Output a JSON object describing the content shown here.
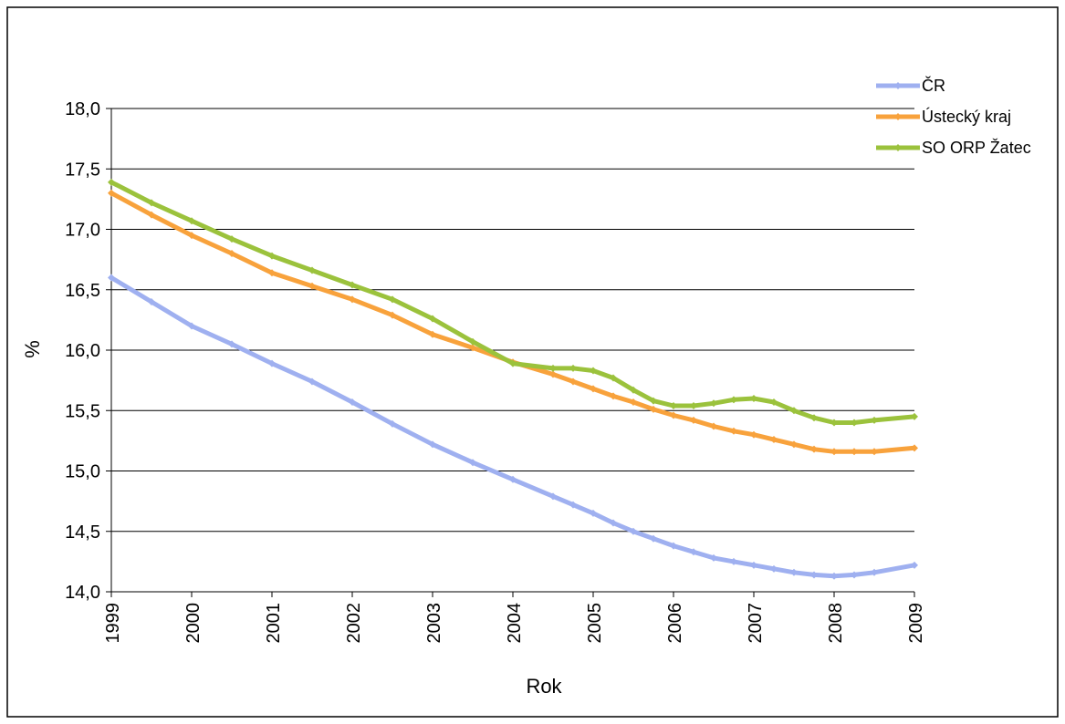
{
  "chart_data": {
    "type": "line",
    "title": "",
    "xlabel": "Rok",
    "ylabel": "%",
    "ylim": [
      14.0,
      18.0
    ],
    "yticks": [
      "14,0",
      "14,5",
      "15,0",
      "15,5",
      "16,0",
      "16,5",
      "17,0",
      "17,5",
      "18,0"
    ],
    "ytick_values": [
      14.0,
      14.5,
      15.0,
      15.5,
      16.0,
      16.5,
      17.0,
      17.5,
      18.0
    ],
    "categories": [
      "1999",
      "2000",
      "2001",
      "2002",
      "2003",
      "2004",
      "2005",
      "2006",
      "2007",
      "2008",
      "2009"
    ],
    "grid": true,
    "legend_position": "top-right",
    "x": [
      1999,
      1999.5,
      2000,
      2000.5,
      2001,
      2001.5,
      2002,
      2002.5,
      2003,
      2003.5,
      2004,
      2004.5,
      2004.75,
      2005,
      2005.25,
      2005.5,
      2005.75,
      2006,
      2006.25,
      2006.5,
      2006.75,
      2007,
      2007.25,
      2007.5,
      2007.75,
      2008,
      2008.25,
      2008.5,
      2009
    ],
    "series": [
      {
        "name": "ČR",
        "color": "#9fb0f0",
        "values": [
          16.6,
          16.4,
          16.2,
          16.05,
          15.89,
          15.74,
          15.57,
          15.39,
          15.22,
          15.07,
          14.93,
          14.79,
          14.72,
          14.65,
          14.57,
          14.5,
          14.44,
          14.38,
          14.33,
          14.28,
          14.25,
          14.22,
          14.19,
          14.16,
          14.14,
          14.13,
          14.14,
          14.16,
          14.22
        ]
      },
      {
        "name": "Ústecký kraj",
        "color": "#f8a23c",
        "values": [
          17.3,
          17.12,
          16.95,
          16.8,
          16.64,
          16.53,
          16.42,
          16.29,
          16.13,
          16.02,
          15.9,
          15.8,
          15.74,
          15.68,
          15.62,
          15.57,
          15.51,
          15.46,
          15.42,
          15.37,
          15.33,
          15.3,
          15.26,
          15.22,
          15.18,
          15.16,
          15.16,
          15.16,
          15.19
        ]
      },
      {
        "name": "SO ORP Žatec",
        "color": "#9bc23c",
        "values": [
          17.39,
          17.22,
          17.07,
          16.92,
          16.78,
          16.66,
          16.54,
          16.42,
          16.26,
          16.07,
          15.89,
          15.85,
          15.85,
          15.83,
          15.77,
          15.67,
          15.58,
          15.54,
          15.54,
          15.56,
          15.59,
          15.6,
          15.57,
          15.5,
          15.44,
          15.4,
          15.4,
          15.42,
          15.45
        ]
      }
    ]
  }
}
